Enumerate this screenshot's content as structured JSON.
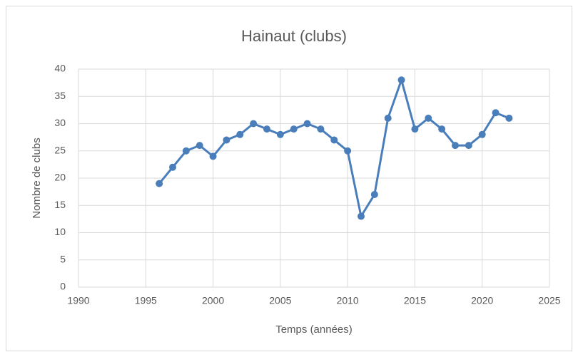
{
  "chart_data": {
    "type": "line",
    "title": "Hainaut (clubs)",
    "xlabel": "Temps (années)",
    "ylabel": "Nombre de clubs",
    "x": [
      1996,
      1997,
      1998,
      1999,
      2000,
      2001,
      2002,
      2003,
      2004,
      2005,
      2006,
      2007,
      2008,
      2009,
      2010,
      2011,
      2012,
      2013,
      2014,
      2015,
      2016,
      2017,
      2018,
      2019,
      2020,
      2021,
      2022
    ],
    "series": [
      {
        "name": "Hainaut",
        "color": "#4a7ebb",
        "values": [
          19,
          22,
          25,
          26,
          24,
          27,
          28,
          30,
          29,
          28,
          29,
          30,
          29,
          27,
          25,
          13,
          17,
          31,
          38,
          29,
          31,
          29,
          26,
          26,
          28,
          32,
          31
        ]
      }
    ],
    "xlim": [
      1990,
      2025
    ],
    "xticks": [
      1990,
      1995,
      2000,
      2005,
      2010,
      2015,
      2020,
      2025
    ],
    "ylim": [
      0,
      40
    ],
    "yticks": [
      0,
      5,
      10,
      15,
      20,
      25,
      30,
      35,
      40
    ],
    "grid": true
  }
}
